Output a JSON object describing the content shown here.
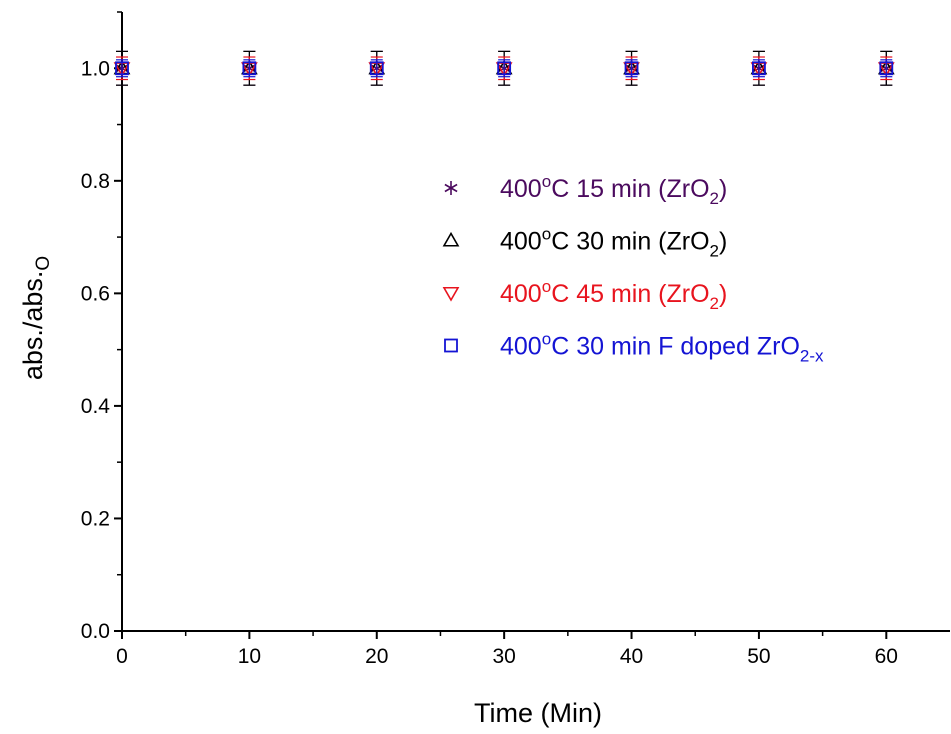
{
  "chart_data": {
    "type": "scatter",
    "title": "",
    "xlabel": "Time (Min)",
    "ylabel": {
      "main": "abs./abs.",
      "sub": "O"
    },
    "xlim": [
      0,
      65
    ],
    "ylim": [
      0,
      1.1
    ],
    "x_ticks": [
      0,
      10,
      20,
      30,
      40,
      50,
      60
    ],
    "x_tick_labels": [
      "0",
      "10",
      "20",
      "30",
      "40",
      "50",
      "60"
    ],
    "y_ticks": [
      0,
      0.2,
      0.4,
      0.6,
      0.8,
      1.0
    ],
    "y_tick_labels": [
      "0.0",
      "0.2",
      "0.4",
      "0.6",
      "0.8",
      "1.0"
    ],
    "grid": false,
    "legend_position": "right",
    "x": [
      0,
      10,
      20,
      30,
      40,
      50,
      60
    ],
    "series": [
      {
        "name": "400°C 15 min (ZrO2)",
        "label_parts": {
          "main": "400",
          "sup": "o",
          "mid": "C 15 min (ZrO",
          "sub": "2",
          "tail": ")"
        },
        "marker": "asterisk",
        "color": "#4b0a5e",
        "values": [
          1,
          1,
          1,
          1,
          1,
          1,
          1
        ],
        "error": 0.03
      },
      {
        "name": "400°C 30 min (ZrO2)",
        "label_parts": {
          "main": "400",
          "sup": "o",
          "mid": "C 30 min (ZrO",
          "sub": "2",
          "tail": ")"
        },
        "marker": "triangle-up",
        "color": "#000000",
        "values": [
          1,
          1,
          1,
          1,
          1,
          1,
          1
        ],
        "error": 0.03
      },
      {
        "name": "400°C 45 min (ZrO2)",
        "label_parts": {
          "main": "400",
          "sup": "o",
          "mid": "C 45 min (ZrO",
          "sub": "2",
          "tail": ")"
        },
        "marker": "triangle-down",
        "color": "#e8141e",
        "values": [
          1,
          1,
          1,
          1,
          1,
          1,
          1
        ],
        "error": 0.02
      },
      {
        "name": "400°C 30 min F doped ZrO2-x",
        "label_parts": {
          "main": "400",
          "sup": "o",
          "mid": "C 30 min F doped ZrO",
          "sub": "2-x",
          "tail": ""
        },
        "marker": "square",
        "color": "#1414d4",
        "values": [
          1,
          1,
          1,
          1,
          1,
          1,
          1
        ],
        "error": 0.015
      }
    ]
  }
}
